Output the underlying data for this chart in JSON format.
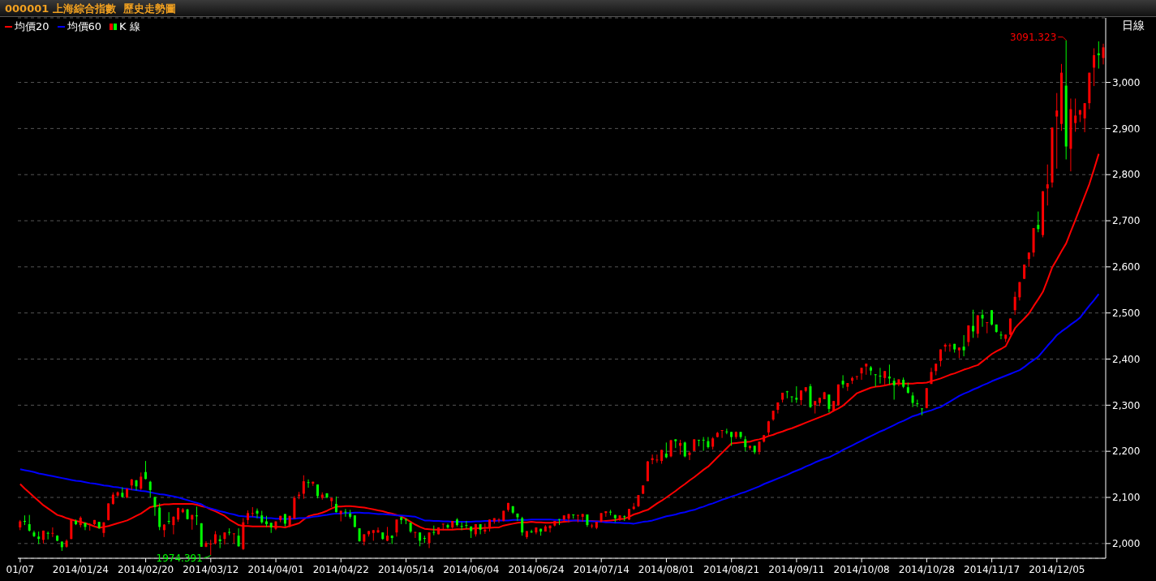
{
  "chart_data": {
    "type": "candlestick",
    "title": "000001 上海綜合指數  歷史走勢圖",
    "annotations": [
      "日線",
      "3091.323",
      "1974.391"
    ],
    "categories": [
      "01/07",
      null,
      null,
      null,
      null,
      null,
      null,
      null,
      null,
      null,
      null,
      null,
      null,
      "2014/01/24",
      null,
      null,
      null,
      null,
      null,
      null,
      null,
      null,
      null,
      null,
      null,
      null,
      null,
      "2014/02/20",
      null,
      null,
      null,
      null,
      null,
      null,
      null,
      null,
      null,
      null,
      null,
      null,
      null,
      "2014/03/12",
      null,
      null,
      null,
      null,
      null,
      null,
      null,
      null,
      null,
      null,
      null,
      null,
      null,
      "2014/04/01",
      null,
      null,
      null,
      null,
      null,
      null,
      null,
      null,
      null,
      null,
      null,
      null,
      null,
      "2014/04/22",
      null,
      null,
      null,
      null,
      null,
      null,
      null,
      null,
      null,
      null,
      null,
      null,
      null,
      "2014/05/14",
      null,
      null,
      null,
      null,
      null,
      null,
      null,
      null,
      null,
      null,
      null,
      null,
      null,
      "2014/06/04",
      null,
      null,
      null,
      null,
      null,
      null,
      null,
      null,
      null,
      null,
      null,
      null,
      null,
      "2014/06/24",
      null,
      null,
      null,
      null,
      null,
      null,
      null,
      null,
      null,
      null,
      null,
      null,
      null,
      "2014/07/14",
      null,
      null,
      null,
      null,
      null,
      null,
      null,
      null,
      null,
      null,
      null,
      null,
      null,
      "2014/08/01",
      null,
      null,
      null,
      null,
      null,
      null,
      null,
      null,
      null,
      null,
      null,
      null,
      null,
      "2014/08/21",
      null,
      null,
      null,
      null,
      null,
      null,
      null,
      null,
      null,
      null,
      null,
      null,
      null,
      "2014/09/11",
      null,
      null,
      null,
      null,
      null,
      null,
      null,
      null,
      null,
      null,
      null,
      null,
      null,
      "2014/10/08",
      null,
      null,
      null,
      null,
      null,
      null,
      null,
      null,
      null,
      null,
      null,
      null,
      null,
      "2014/10/28",
      null,
      null,
      null,
      null,
      null,
      null,
      null,
      null,
      null,
      null,
      null,
      null,
      null,
      "2014/11/17",
      null,
      null,
      null,
      null,
      null,
      null,
      null,
      null,
      null,
      null,
      null,
      null,
      null,
      "2014/12/05",
      null,
      null,
      null,
      null,
      null,
      null,
      null,
      null,
      null,
      null
    ],
    "series": [
      {
        "type": "line",
        "name": "均價20",
        "color": "#ff0000",
        "values": [
          2129,
          2119,
          2110,
          2101,
          2092,
          2083,
          2076,
          2069,
          2062,
          2059,
          2055,
          2052,
          2049,
          2047,
          2044,
          2041,
          2037,
          2034,
          2036,
          2038,
          2041,
          2044,
          2047,
          2050,
          2055,
          2060,
          2065,
          2072,
          2079,
          2081,
          2083,
          2085,
          2085,
          2086,
          2086,
          2086,
          2086,
          2086,
          2084,
          2081,
          2079,
          2074,
          2070,
          2065,
          2060,
          2052,
          2046,
          2040,
          2038,
          2038,
          2037,
          2037,
          2037,
          2037,
          2037,
          2036,
          2036,
          2035,
          2038,
          2041,
          2044,
          2052,
          2059,
          2062,
          2064,
          2067,
          2071,
          2076,
          2080,
          2080,
          2081,
          2081,
          2080,
          2079,
          2078,
          2076,
          2074,
          2072,
          2070,
          2067,
          2065,
          2062,
          2059,
          2053,
          2047,
          2041,
          2036,
          2032,
          2031,
          2030,
          2030,
          2030,
          2030,
          2030,
          2031,
          2031,
          2032,
          2032,
          2033,
          2033,
          2034,
          2034,
          2035,
          2035,
          2039,
          2041,
          2043,
          2045,
          2046,
          2046,
          2047,
          2046,
          2046,
          2045,
          2045,
          2046,
          2046,
          2047,
          2048,
          2050,
          2050,
          2049,
          2049,
          2049,
          2048,
          2048,
          2049,
          2050,
          2051,
          2053,
          2054,
          2058,
          2063,
          2066,
          2070,
          2073,
          2080,
          2087,
          2093,
          2100,
          2107,
          2114,
          2122,
          2129,
          2137,
          2144,
          2152,
          2160,
          2167,
          2177,
          2187,
          2197,
          2207,
          2217,
          2218,
          2219,
          2220,
          2221,
          2224,
          2226,
          2229,
          2233,
          2236,
          2240,
          2243,
          2247,
          2250,
          2254,
          2258,
          2262,
          2266,
          2270,
          2274,
          2278,
          2282,
          2288,
          2293,
          2299,
          2308,
          2317,
          2326,
          2330,
          2334,
          2338,
          2340,
          2341,
          2343,
          2345,
          2347,
          2347,
          2347,
          2347,
          2347,
          2348,
          2348,
          2349,
          2352,
          2355,
          2358,
          2362,
          2366,
          2369,
          2373,
          2377,
          2380,
          2384,
          2387,
          2395,
          2403,
          2411,
          2417,
          2422,
          2428,
          2448,
          2467,
          2478,
          2488,
          2499,
          2515,
          2530,
          2546,
          2572,
          2599,
          2616,
          2634,
          2651,
          2677,
          2702,
          2728,
          2754,
          2780,
          2812,
          2845,
          null
        ]
      },
      {
        "type": "line",
        "name": "均價60",
        "color": "#0000ff",
        "values": [
          2161,
          2159,
          2157,
          2155,
          2152,
          2150,
          2148,
          2146,
          2144,
          2142,
          2140,
          2138,
          2136,
          2135,
          2133,
          2131,
          2130,
          2128,
          2126,
          2125,
          2123,
          2122,
          2120,
          2119,
          2117,
          2116,
          2114,
          2113,
          2111,
          2109,
          2107,
          2106,
          2104,
          2102,
          2100,
          2097,
          2094,
          2091,
          2088,
          2085,
          2079,
          2076,
          2073,
          2070,
          2068,
          2065,
          2063,
          2060,
          2059,
          2058,
          2058,
          2057,
          2056,
          2055,
          2055,
          2054,
          2054,
          2053,
          2054,
          2054,
          2055,
          2055,
          2056,
          2058,
          2059,
          2061,
          2062,
          2064,
          2065,
          2065,
          2066,
          2066,
          2067,
          2067,
          2066,
          2066,
          2065,
          2064,
          2064,
          2063,
          2062,
          2061,
          2061,
          2060,
          2059,
          2058,
          2054,
          2050,
          2050,
          2049,
          2049,
          2048,
          2048,
          2047,
          2047,
          2047,
          2047,
          2047,
          2048,
          2048,
          2049,
          2049,
          2049,
          2050,
          2050,
          2050,
          2051,
          2051,
          2051,
          2051,
          2052,
          2052,
          2052,
          2052,
          2052,
          2051,
          2051,
          2051,
          2050,
          2050,
          2050,
          2049,
          2049,
          2048,
          2048,
          2047,
          2046,
          2046,
          2045,
          2045,
          2044,
          2044,
          2043,
          2045,
          2047,
          2048,
          2050,
          2053,
          2056,
          2059,
          2061,
          2063,
          2066,
          2068,
          2071,
          2073,
          2077,
          2080,
          2084,
          2087,
          2091,
          2095,
          2098,
          2102,
          2105,
          2109,
          2112,
          2116,
          2120,
          2124,
          2129,
          2133,
          2137,
          2141,
          2145,
          2149,
          2154,
          2158,
          2162,
          2167,
          2171,
          2176,
          2180,
          2184,
          2187,
          2192,
          2197,
          2203,
          2208,
          2213,
          2218,
          2223,
          2228,
          2233,
          2238,
          2243,
          2247,
          2252,
          2257,
          2262,
          2266,
          2271,
          2276,
          2279,
          2283,
          2286,
          2289,
          2293,
          2296,
          2302,
          2308,
          2314,
          2320,
          2325,
          2329,
          2334,
          2338,
          2343,
          2347,
          2352,
          2356,
          2360,
          2364,
          2368,
          2372,
          2376,
          2383,
          2391,
          2398,
          2405,
          2417,
          2429,
          2440,
          2452,
          2460,
          2467,
          2475,
          2482,
          2490,
          2503,
          2516,
          2528,
          2541,
          null
        ]
      },
      {
        "name": "K 線",
        "colors": [
          "#ff0000",
          "#00ff00",
          "#00ff00",
          "#00ff00",
          "#00ff00",
          "#ff0000",
          "#00ff00",
          "#ff0000",
          "#00ff00",
          "#00ff00",
          "#ff0000",
          "#ff0000",
          "#00ff00",
          "#ff0000",
          "#00ff00",
          "#ff0000",
          "#ff0000",
          "#00ff00",
          "#ff0000",
          "#ff0000",
          "#ff0000",
          "#ff0000",
          "#00ff00",
          "#ff0000",
          "#ff0000",
          "#00ff00",
          "#ff0000",
          "#00ff00",
          "#00ff00",
          "#00ff00",
          "#00ff00",
          "#ff0000",
          "#00ff00",
          "#ff0000",
          "#ff0000",
          "#ff0000",
          "#00ff00",
          "#ff0000",
          "#00ff00",
          "#00ff00",
          "#ff0000",
          "#ff0000",
          "#ff0000",
          "#00ff00",
          "#ff0000",
          "#00ff00",
          "#ff0000",
          "#00ff00",
          "#ff0000",
          "#ff0000",
          "#ff0000",
          "#00ff00",
          "#00ff00",
          "#00ff00",
          "#00ff00",
          "#ff0000",
          "#ff0000",
          "#00ff00",
          "#ff0000",
          "#ff0000",
          "#ff0000",
          "#ff0000",
          "#00ff00",
          "#ff0000",
          "#00ff00",
          "#ff0000",
          "#00ff00",
          "#ff0000",
          "#00ff00",
          "#ff0000",
          "#00ff00",
          "#00ff00",
          "#00ff00",
          "#00ff00",
          "#ff0000",
          "#ff0000",
          "#ff0000",
          "#ff0000",
          "#00ff00",
          "#ff0000",
          "#00ff00",
          "#ff0000",
          "#00ff00",
          "#00ff00",
          "#00ff00",
          "#ff0000",
          "#00ff00",
          "#00ff00",
          "#ff0000",
          "#00ff00",
          "#ff0000",
          "#ff0000",
          "#00ff00",
          "#ff0000",
          "#00ff00",
          "#00ff00",
          "#00ff00",
          "#00ff00",
          "#ff0000",
          "#00ff00",
          "#ff0000",
          "#ff0000",
          "#ff0000",
          "#ff0000",
          "#ff0000",
          "#ff0000",
          "#00ff00",
          "#00ff00",
          "#00ff00",
          "#ff0000",
          "#00ff00",
          "#ff0000",
          "#00ff00",
          "#ff0000",
          "#ff0000",
          "#ff0000",
          "#00ff00",
          "#ff0000",
          "#ff0000",
          "#00ff00",
          "#ff0000",
          "#ff0000",
          "#00ff00",
          "#ff0000",
          "#ff0000",
          "#ff0000",
          "#ff0000",
          "#00ff00",
          "#00ff00",
          "#ff0000",
          "#00ff00",
          "#ff0000",
          "#ff0000",
          "#ff0000",
          "#ff0000",
          "#ff0000",
          "#ff0000",
          "#ff0000",
          "#ff0000",
          "#00ff00",
          "#ff0000",
          "#00ff00",
          "#ff0000",
          "#00ff00",
          "#ff0000",
          "#ff0000",
          "#00ff00",
          "#00ff00",
          "#00ff00",
          "#ff0000",
          "#ff0000",
          "#ff0000",
          "#00ff00",
          "#00ff00",
          "#ff0000",
          "#00ff00",
          "#00ff00",
          "#ff0000",
          "#00ff00",
          "#ff0000",
          "#ff0000",
          "#ff0000",
          "#ff0000",
          "#ff0000",
          "#ff0000",
          "#00ff00",
          "#00ff00",
          "#00ff00",
          "#ff0000",
          "#ff0000",
          "#00ff00",
          "#ff0000",
          "#ff0000",
          "#ff0000",
          "#00ff00",
          "#ff0000",
          "#ff0000",
          "#00ff00",
          "#ff0000",
          "#ff0000",
          "#ff0000",
          "#ff0000",
          "#ff0000",
          "#00ff00",
          "#00ff00",
          "#00ff00",
          "#ff0000",
          "#00ff00",
          "#00ff00",
          "#ff0000",
          "#00ff00",
          "#00ff00",
          "#00ff00",
          "#00ff00",
          "#00ff00",
          "#ff0000",
          "#ff0000",
          "#ff0000",
          "#ff0000",
          "#ff0000",
          "#ff0000",
          "#00ff00",
          "#ff0000",
          "#00ff00",
          "#ff0000",
          "#00ff00",
          "#ff0000",
          "#00ff00",
          "#ff0000",
          "#00ff00",
          "#00ff00",
          "#00ff00",
          "#ff0000",
          "#ff0000",
          "#ff0000",
          "#ff0000",
          "#ff0000",
          "#ff0000",
          "#ff0000",
          "#00ff00",
          "#ff0000",
          "#ff0000",
          "#ff0000",
          "#ff0000",
          "#ff0000",
          "#00ff00",
          "#ff0000",
          "#ff0000",
          "#ff0000",
          "#ff0000",
          "#ff0000",
          "#ff0000",
          "#00ff00",
          "#ff0000"
        ],
        "ohlc": [
          [
            2035,
            2051,
            2029,
            2048
          ],
          [
            2049,
            2061,
            2040,
            2047
          ],
          [
            2042,
            2062,
            2026,
            2028
          ],
          [
            2024,
            2028,
            2014,
            2016
          ],
          [
            2015,
            2026,
            1999,
            2010
          ],
          [
            2008,
            2028,
            2000,
            2028
          ],
          [
            2023,
            2026,
            2009,
            2022
          ],
          [
            2022,
            2035,
            2014,
            2023
          ],
          [
            2017,
            2018,
            2005,
            2006
          ],
          [
            2004,
            2005,
            1984,
            1992
          ],
          [
            1993,
            2009,
            1991,
            2006
          ],
          [
            2010,
            2053,
            2009,
            2052
          ],
          [
            2049,
            2052,
            2040,
            2042
          ],
          [
            2040,
            2059,
            2035,
            2056
          ],
          [
            2045,
            2045,
            2029,
            2036
          ],
          [
            2040,
            2044,
            2028,
            2042
          ],
          [
            2042,
            2051,
            2040,
            2051
          ],
          [
            2047,
            2047,
            2032,
            2034
          ],
          [
            2023,
            2046,
            2014,
            2046
          ],
          [
            2051,
            2087,
            2050,
            2087
          ],
          [
            2086,
            2111,
            2084,
            2106
          ],
          [
            2104,
            2113,
            2101,
            2111
          ],
          [
            2110,
            2122,
            2100,
            2101
          ],
          [
            2100,
            2119,
            2098,
            2119
          ],
          [
            2126,
            2140,
            2116,
            2139
          ],
          [
            2137,
            2138,
            2115,
            2124
          ],
          [
            2119,
            2154,
            2116,
            2145
          ],
          [
            2155,
            2179,
            2139,
            2140
          ],
          [
            2134,
            2136,
            2100,
            2116
          ],
          [
            2101,
            2101,
            2060,
            2079
          ],
          [
            2078,
            2087,
            2029,
            2036
          ],
          [
            2029,
            2042,
            2014,
            2041
          ],
          [
            2049,
            2068,
            2042,
            2047
          ],
          [
            2040,
            2059,
            2020,
            2058
          ],
          [
            2052,
            2078,
            2047,
            2077
          ],
          [
            2068,
            2077,
            2066,
            2074
          ],
          [
            2074,
            2075,
            2052,
            2053
          ],
          [
            2052,
            2062,
            2030,
            2062
          ],
          [
            2061,
            2080,
            2040,
            2059
          ],
          [
            2044,
            2044,
            1993,
            1993
          ],
          [
            1993,
            2005,
            1992,
            2001
          ],
          [
            1998,
            2008,
            1974.391,
            2000
          ],
          [
            2000,
            2027,
            1998,
            2020
          ],
          [
            2009,
            2018,
            1990,
            2005
          ],
          [
            2010,
            2024,
            1998,
            2024
          ],
          [
            2025,
            2033,
            2018,
            2024
          ],
          [
            2021,
            2022,
            2000,
            2022
          ],
          [
            2017,
            2033,
            1993,
            1994
          ],
          [
            1988,
            2055,
            1986,
            2046
          ],
          [
            2051,
            2072,
            2042,
            2066
          ],
          [
            2065,
            2079,
            2058,
            2066
          ],
          [
            2071,
            2076,
            2055,
            2065
          ],
          [
            2061,
            2071,
            2043,
            2046
          ],
          [
            2048,
            2060,
            2036,
            2042
          ],
          [
            2045,
            2045,
            2023,
            2035
          ],
          [
            2032,
            2048,
            2029,
            2048
          ],
          [
            2051,
            2060,
            2046,
            2060
          ],
          [
            2064,
            2064,
            2037,
            2043
          ],
          [
            2037,
            2060,
            2035,
            2060
          ],
          [
            2054,
            2103,
            2054,
            2099
          ],
          [
            2103,
            2112,
            2096,
            2106
          ],
          [
            2108,
            2148,
            2097,
            2135
          ],
          [
            2133,
            2139,
            2121,
            2132
          ],
          [
            2130,
            2134,
            2125,
            2134
          ],
          [
            2128,
            2128,
            2098,
            2103
          ],
          [
            2099,
            2111,
            2095,
            2106
          ],
          [
            2109,
            2109,
            2098,
            2100
          ],
          [
            2092,
            2099,
            2079,
            2099
          ],
          [
            2086,
            2102,
            2067,
            2068
          ],
          [
            2064,
            2071,
            2048,
            2071
          ],
          [
            2069,
            2075,
            2058,
            2068
          ],
          [
            2065,
            2073,
            2054,
            2058
          ],
          [
            2061,
            2061,
            2035,
            2036
          ],
          [
            2033,
            2033,
            2004,
            2005
          ],
          [
            2004,
            2020,
            1996,
            2020
          ],
          [
            2020,
            2027,
            2015,
            2027
          ],
          [
            2023,
            2029,
            2006,
            2029
          ],
          [
            2024,
            2035,
            2023,
            2029
          ],
          [
            2024,
            2024,
            2008,
            2010
          ],
          [
            2006,
            2036,
            2005,
            2017
          ],
          [
            2017,
            2018,
            1999,
            2012
          ],
          [
            2024,
            2052,
            2015,
            2052
          ],
          [
            2057,
            2058,
            2042,
            2051
          ],
          [
            2052,
            2055,
            2042,
            2051
          ],
          [
            2045,
            2045,
            2023,
            2026
          ],
          [
            2024,
            2025,
            2012,
            2025
          ],
          [
            2024,
            2024,
            1994,
            2006
          ],
          [
            2012,
            2017,
            2001,
            2010
          ],
          [
            2001,
            2024,
            1990,
            2024
          ],
          [
            2025,
            2039,
            2018,
            2024
          ],
          [
            2020,
            2035,
            2020,
            2035
          ],
          [
            2042,
            2043,
            2029,
            2043
          ],
          [
            2040,
            2043,
            2032,
            2035
          ],
          [
            2035,
            2049,
            2032,
            2049
          ],
          [
            2052,
            2055,
            2037,
            2040
          ],
          [
            2038,
            2046,
            2029,
            2037
          ],
          [
            2040,
            2049,
            2032,
            2039
          ],
          [
            2037,
            2037,
            2012,
            2027
          ],
          [
            2020,
            2042,
            2015,
            2042
          ],
          [
            2042,
            2042,
            2020,
            2030
          ],
          [
            2026,
            2043,
            2021,
            2030
          ],
          [
            2033,
            2052,
            2026,
            2052
          ],
          [
            2048,
            2055,
            2043,
            2055
          ],
          [
            2051,
            2055,
            2045,
            2052
          ],
          [
            2049,
            2071,
            2048,
            2071
          ],
          [
            2073,
            2088,
            2069,
            2088
          ],
          [
            2081,
            2081,
            2064,
            2067
          ],
          [
            2065,
            2065,
            2049,
            2057
          ],
          [
            2055,
            2058,
            2017,
            2024
          ],
          [
            2014,
            2027,
            2010,
            2027
          ],
          [
            2026,
            2030,
            2023,
            2025
          ],
          [
            2024,
            2035,
            2020,
            2035
          ],
          [
            2032,
            2032,
            2017,
            2026
          ],
          [
            2026,
            2040,
            2026,
            2037
          ],
          [
            2033,
            2039,
            2024,
            2039
          ],
          [
            2039,
            2049,
            2037,
            2049
          ],
          [
            2053,
            2053,
            2040,
            2052
          ],
          [
            2052,
            2061,
            2049,
            2061
          ],
          [
            2054,
            2064,
            2046,
            2064
          ],
          [
            2063,
            2063,
            2054,
            2062
          ],
          [
            2061,
            2062,
            2046,
            2062
          ],
          [
            2058,
            2064,
            2047,
            2064
          ],
          [
            2063,
            2063,
            2036,
            2040
          ],
          [
            2038,
            2043,
            2033,
            2039
          ],
          [
            2034,
            2047,
            2031,
            2047
          ],
          [
            2047,
            2066,
            2046,
            2066
          ],
          [
            2066,
            2070,
            2058,
            2070
          ],
          [
            2069,
            2073,
            2061,
            2068
          ],
          [
            2062,
            2062,
            2046,
            2055
          ],
          [
            2052,
            2061,
            2049,
            2061
          ],
          [
            2059,
            2061,
            2049,
            2058
          ],
          [
            2052,
            2075,
            2051,
            2075
          ],
          [
            2075,
            2088,
            2073,
            2080
          ],
          [
            2081,
            2105,
            2079,
            2105
          ],
          [
            2108,
            2126,
            2107,
            2126
          ],
          [
            2135,
            2179,
            2135,
            2178
          ],
          [
            2181,
            2193,
            2172,
            2185
          ],
          [
            2181,
            2193,
            2175,
            2182
          ],
          [
            2179,
            2203,
            2173,
            2203
          ],
          [
            2195,
            2219,
            2185,
            2187
          ],
          [
            2189,
            2225,
            2187,
            2224
          ],
          [
            2226,
            2226,
            2207,
            2222
          ],
          [
            2212,
            2225,
            2193,
            2218
          ],
          [
            2219,
            2221,
            2187,
            2189
          ],
          [
            2192,
            2200,
            2181,
            2197
          ],
          [
            2201,
            2226,
            2201,
            2226
          ],
          [
            2225,
            2225,
            2211,
            2224
          ],
          [
            2225,
            2231,
            2201,
            2224
          ],
          [
            2222,
            2231,
            2206,
            2209
          ],
          [
            2210,
            2231,
            2204,
            2228
          ],
          [
            2231,
            2242,
            2230,
            2240
          ],
          [
            2245,
            2246,
            2229,
            2246
          ],
          [
            2243,
            2249,
            2237,
            2242
          ],
          [
            2242,
            2242,
            2212,
            2231
          ],
          [
            2231,
            2243,
            2227,
            2242
          ],
          [
            2242,
            2242,
            2227,
            2231
          ],
          [
            2226,
            2233,
            2200,
            2209
          ],
          [
            2207,
            2212,
            2203,
            2212
          ],
          [
            2212,
            2212,
            2194,
            2198
          ],
          [
            2199,
            2221,
            2193,
            2221
          ],
          [
            2221,
            2235,
            2219,
            2235
          ],
          [
            2241,
            2266,
            2234,
            2265
          ],
          [
            2269,
            2288,
            2266,
            2288
          ],
          [
            2290,
            2306,
            2282,
            2306
          ],
          [
            2312,
            2327,
            2306,
            2327
          ],
          [
            2330,
            2331,
            2315,
            2329
          ],
          [
            2319,
            2319,
            2306,
            2318
          ],
          [
            2316,
            2341,
            2305,
            2312
          ],
          [
            2311,
            2332,
            2300,
            2332
          ],
          [
            2331,
            2339,
            2328,
            2339
          ],
          [
            2341,
            2346,
            2294,
            2296
          ],
          [
            2300,
            2309,
            2282,
            2309
          ],
          [
            2305,
            2316,
            2298,
            2316
          ],
          [
            2313,
            2329,
            2313,
            2328
          ],
          [
            2323,
            2323,
            2284,
            2292
          ],
          [
            2288,
            2309,
            2286,
            2309
          ],
          [
            2300,
            2345,
            2299,
            2345
          ],
          [
            2353,
            2365,
            2337,
            2345
          ],
          [
            2340,
            2348,
            2331,
            2348
          ],
          [
            2353,
            2362,
            2346,
            2359
          ],
          [
            2362,
            2363,
            2355,
            2363
          ],
          [
            2369,
            2381,
            2355,
            2381
          ],
          [
            2384,
            2390,
            2366,
            2390
          ],
          [
            2382,
            2385,
            2365,
            2375
          ],
          [
            2367,
            2367,
            2340,
            2366
          ],
          [
            2364,
            2381,
            2347,
            2363
          ],
          [
            2359,
            2374,
            2345,
            2374
          ],
          [
            2362,
            2388,
            2345,
            2358
          ],
          [
            2353,
            2359,
            2312,
            2343
          ],
          [
            2346,
            2356,
            2341,
            2356
          ],
          [
            2355,
            2360,
            2337,
            2340
          ],
          [
            2339,
            2349,
            2325,
            2327
          ],
          [
            2321,
            2328,
            2296,
            2305
          ],
          [
            2304,
            2312,
            2296,
            2303
          ],
          [
            2293,
            2293,
            2278,
            2292
          ],
          [
            2294,
            2337,
            2293,
            2337
          ],
          [
            2346,
            2381,
            2346,
            2372
          ],
          [
            2374,
            2390,
            2365,
            2390
          ],
          [
            2396,
            2421,
            2384,
            2421
          ],
          [
            2427,
            2434,
            2416,
            2431
          ],
          [
            2429,
            2434,
            2416,
            2430
          ],
          [
            2433,
            2433,
            2414,
            2421
          ],
          [
            2419,
            2425,
            2402,
            2425
          ],
          [
            2427,
            2452,
            2406,
            2419
          ],
          [
            2437,
            2473,
            2428,
            2473
          ],
          [
            2472,
            2507,
            2446,
            2460
          ],
          [
            2455,
            2495,
            2446,
            2495
          ],
          [
            2496,
            2507,
            2470,
            2488
          ],
          [
            2479,
            2480,
            2456,
            2480
          ],
          [
            2506,
            2506,
            2473,
            2475
          ],
          [
            2475,
            2475,
            2457,
            2459
          ],
          [
            2453,
            2460,
            2443,
            2452
          ],
          [
            2444,
            2453,
            2437,
            2453
          ],
          [
            2453,
            2488,
            2452,
            2488
          ],
          [
            2506,
            2546,
            2496,
            2535
          ],
          [
            2534,
            2567,
            2527,
            2567
          ],
          [
            2574,
            2605,
            2574,
            2605
          ],
          [
            2617,
            2631,
            2600,
            2631
          ],
          [
            2631,
            2684,
            2622,
            2684
          ],
          [
            2691,
            2720,
            2675,
            2682
          ],
          [
            2669,
            2764,
            2664,
            2764
          ],
          [
            2770,
            2822,
            2733,
            2779
          ],
          [
            2783,
            2902,
            2772,
            2902
          ],
          [
            2926,
            2977,
            2813,
            2939
          ],
          [
            2910,
            3040,
            2895,
            3021
          ],
          [
            2993,
            3091.323,
            2833,
            2861
          ],
          [
            2856,
            2965,
            2807,
            2942
          ],
          [
            2912,
            2965,
            2893,
            2928
          ],
          [
            2930,
            2940,
            2914,
            2940
          ],
          [
            2922,
            2955,
            2892,
            2955
          ],
          [
            2955,
            3021,
            2942,
            3021
          ],
          [
            3032,
            3074,
            2992,
            3059
          ],
          [
            3063,
            3089,
            3030,
            3059
          ],
          [
            3053,
            3084,
            3039,
            3076
          ]
        ]
      }
    ],
    "ylim": [
      1968,
      3140
    ],
    "yticks": [
      {
        "value": 2000,
        "label": "2,000"
      },
      {
        "value": 2100,
        "label": "2,100"
      },
      {
        "value": 2200,
        "label": "2,200"
      },
      {
        "value": 2300,
        "label": "2,300"
      },
      {
        "value": 2400,
        "label": "2,400"
      },
      {
        "value": 2500,
        "label": "2,500"
      },
      {
        "value": 2600,
        "label": "2,600"
      },
      {
        "value": 2700,
        "label": "2,700"
      },
      {
        "value": 2800,
        "label": "2,800"
      },
      {
        "value": 2900,
        "label": "2,900"
      },
      {
        "value": 3000,
        "label": "3,000"
      }
    ],
    "grid": "y",
    "legend": "top left"
  }
}
